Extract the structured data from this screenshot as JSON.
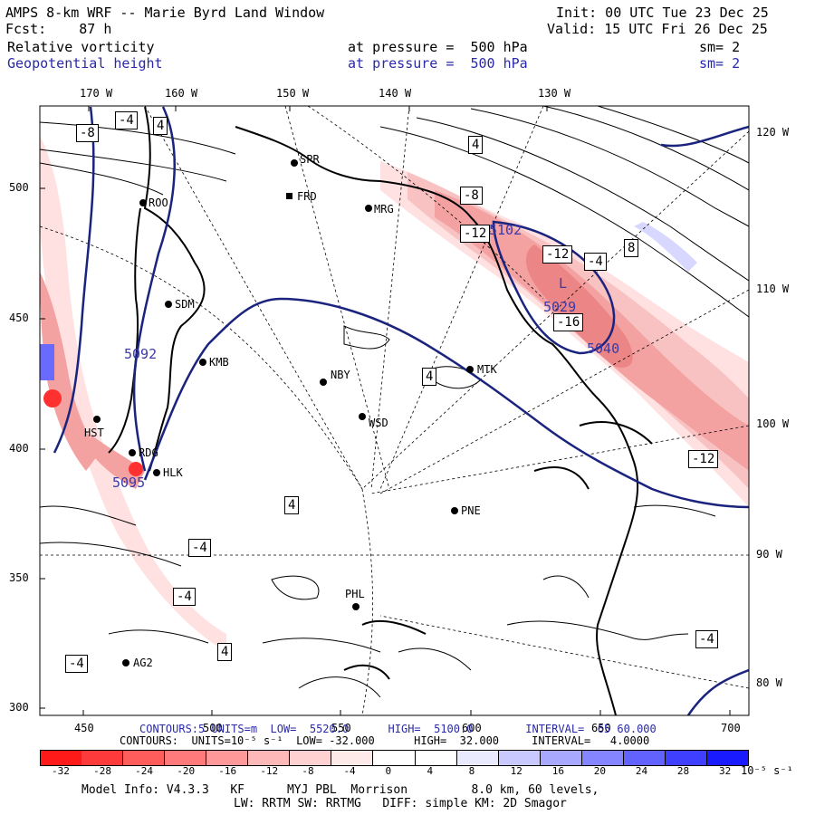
{
  "header": {
    "title": "AMPS 8-km WRF -- Marie Byrd Land Window",
    "init": "Init: 00 UTC Tue 23 Dec 25",
    "fcst": "Fcst:    87 h",
    "valid": "Valid: 15 UTC Fri 26 Dec 25",
    "field1": "Relative vorticity",
    "field1_level": "at pressure =  500 hPa",
    "field1_sm": "sm= 2",
    "field2": "Geopotential height",
    "field2_level": "at pressure =  500 hPa",
    "field2_sm": "sm= 2"
  },
  "colors": {
    "blue_label": "#2a2aa8",
    "height_contour": "#1a237e",
    "positive_fill": "#f6b8b8",
    "strong_fill": "#ec8a8a"
  },
  "axes": {
    "top_lon": [
      "170 W",
      "160 W",
      "150 W",
      "140 W",
      "130 W"
    ],
    "right_lon": [
      "120 W",
      "110 W",
      "100 W",
      "90 W",
      "80 W"
    ],
    "left_y": [
      "500",
      "450",
      "400",
      "350",
      "300"
    ],
    "bottom_x": [
      "450",
      "500",
      "550",
      "600",
      "650",
      "700"
    ]
  },
  "stations": [
    {
      "name": "SPR"
    },
    {
      "name": "FRD"
    },
    {
      "name": "ROO"
    },
    {
      "name": "MRG"
    },
    {
      "name": "SDM"
    },
    {
      "name": "KMB"
    },
    {
      "name": "NBY"
    },
    {
      "name": "MTK"
    },
    {
      "name": "WSD"
    },
    {
      "name": "RDG"
    },
    {
      "name": "HLK"
    },
    {
      "name": "PNE"
    },
    {
      "name": "PHL"
    },
    {
      "name": "AG2"
    },
    {
      "name": "HST"
    }
  ],
  "contour_labels": [
    "-4",
    "-8",
    "4",
    "-12",
    "-16",
    "8",
    "-4",
    "4"
  ],
  "height_labels": {
    "low_label": "L",
    "low_value": "5029",
    "h5040": "5040",
    "h5092": "5092",
    "h5102": "5102",
    "h5095": "5095"
  },
  "footer": {
    "contours_height": "CONTOURS:5 UNITS=m  LOW=  5520.0      HIGH=  5100.0        INTERVAL=  65 60.000",
    "contours_vort": "CONTOURS:  UNITS=10⁻⁵ s⁻¹  LOW= -32.000      HIGH=  32.000     INTERVAL=   4.0000",
    "colorbar_labels": [
      "-32",
      "-28",
      "-24",
      "-20",
      "-16",
      "-12",
      "-8",
      "-4",
      "0",
      "4",
      "8",
      "12",
      "16",
      "20",
      "24",
      "28",
      "32"
    ],
    "colorbar_units": "10⁻⁵ s⁻¹",
    "colorbar_colors": [
      "#ff1a1a",
      "#ff3a3a",
      "#ff5c5c",
      "#ff7a7a",
      "#ff9999",
      "#ffb8b8",
      "#ffd1d1",
      "#ffeaea",
      "#ffffff",
      "#ffffff",
      "#eaeaff",
      "#c9c9ff",
      "#a8a8ff",
      "#8585ff",
      "#6262ff",
      "#3f3fff",
      "#1a1aff"
    ],
    "model_info": "Model Info: V4.3.3   KF      MYJ PBL  Morrison         8.0 km, 60 levels,",
    "model_info2": "LW: RRTM SW: RRTMG   DIFF: simple KM: 2D Smagor"
  }
}
